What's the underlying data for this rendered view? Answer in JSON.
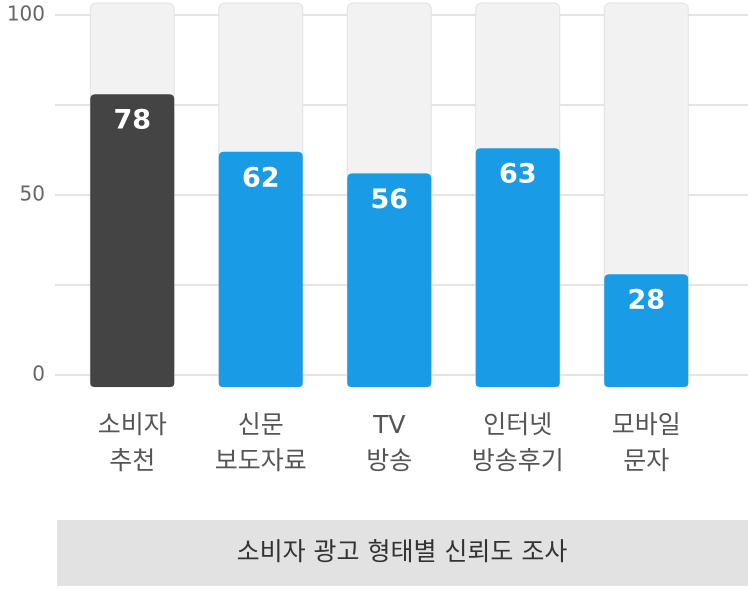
{
  "chart_data": {
    "type": "bar",
    "title": "소비자 광고 형태별 신뢰도 조사",
    "categories": [
      [
        "소비자",
        "추천"
      ],
      [
        "신문",
        "보도자료"
      ],
      [
        "TV",
        "방송"
      ],
      [
        "인터넷",
        "방송후기"
      ],
      [
        "모바일",
        "문자"
      ]
    ],
    "values": [
      78,
      62,
      56,
      63,
      28
    ],
    "colors": [
      "#444444",
      "#1a9be6",
      "#1a9be6",
      "#1a9be6",
      "#1a9be6"
    ],
    "ylim": [
      0,
      100
    ],
    "yticks": [
      0,
      50,
      100
    ],
    "minor_yticks": [
      25,
      75
    ],
    "grid": true
  }
}
